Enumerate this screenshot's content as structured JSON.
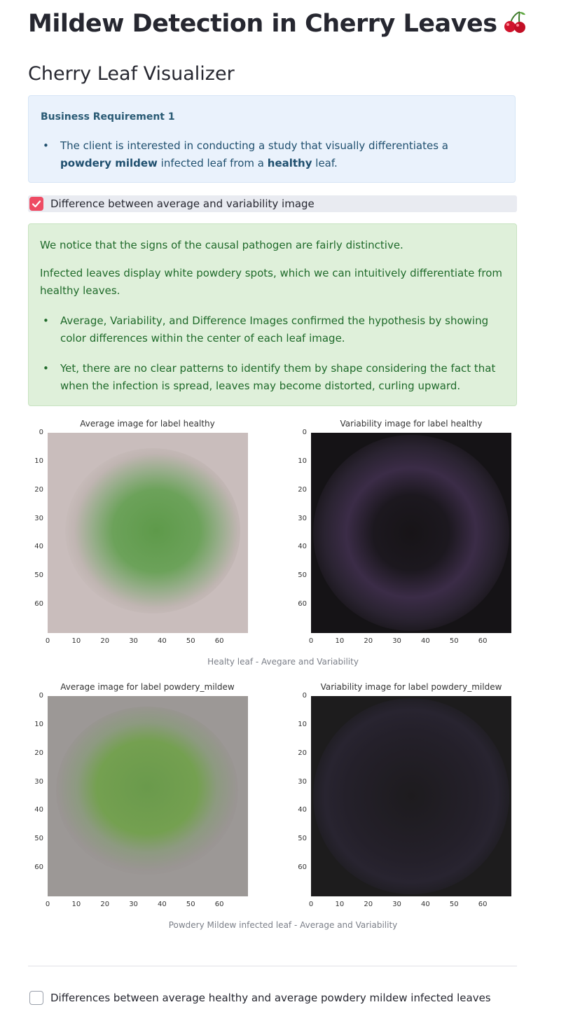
{
  "header": {
    "title": "Mildew Detection in Cherry Leaves",
    "emoji": "🍒"
  },
  "page": {
    "subtitle": "Cherry Leaf Visualizer"
  },
  "info": {
    "heading": "Business Requirement 1",
    "bullet_a": "The client is interested in conducting a study that visually differentiates a ",
    "bullet_b": "powdery mildew",
    "bullet_c": " infected leaf from a ",
    "bullet_d": "healthy",
    "bullet_e": " leaf."
  },
  "checkbox1": {
    "label": "Difference between average and variability image",
    "checked": true
  },
  "success": {
    "p1": "We notice that the signs of the causal pathogen are fairly distinctive.",
    "p2": "Infected leaves display white powdery spots, which we can intuitively differentiate from healthy leaves.",
    "b1": "Average, Variability, and Difference Images confirmed the hypothesis by showing color differences within the center of each leaf image.",
    "b2": "Yet, there are no clear patterns to identify them by shape considering the fact that when the infection is spread, leaves may become distorted, curling upward."
  },
  "figure1": {
    "left_title": "Average image for label healthy",
    "right_title": "Variability image for label healthy",
    "caption": "Healty leaf - Avegare and Variability"
  },
  "figure2": {
    "left_title": "Average image for label powdery_mildew",
    "right_title": "Variability image for label powdery_mildew",
    "caption": "Powdery Mildew infected leaf - Average and Variability"
  },
  "axis_ticks": [
    "0",
    "10",
    "20",
    "30",
    "40",
    "50",
    "60"
  ],
  "checkbox2": {
    "label": "Differences between average healthy and average powdery mildew infected leaves",
    "checked": false
  },
  "colors": {
    "accent": "#ee4b63",
    "info_bg": "#eaf2fc",
    "success_bg": "#dff0da"
  }
}
